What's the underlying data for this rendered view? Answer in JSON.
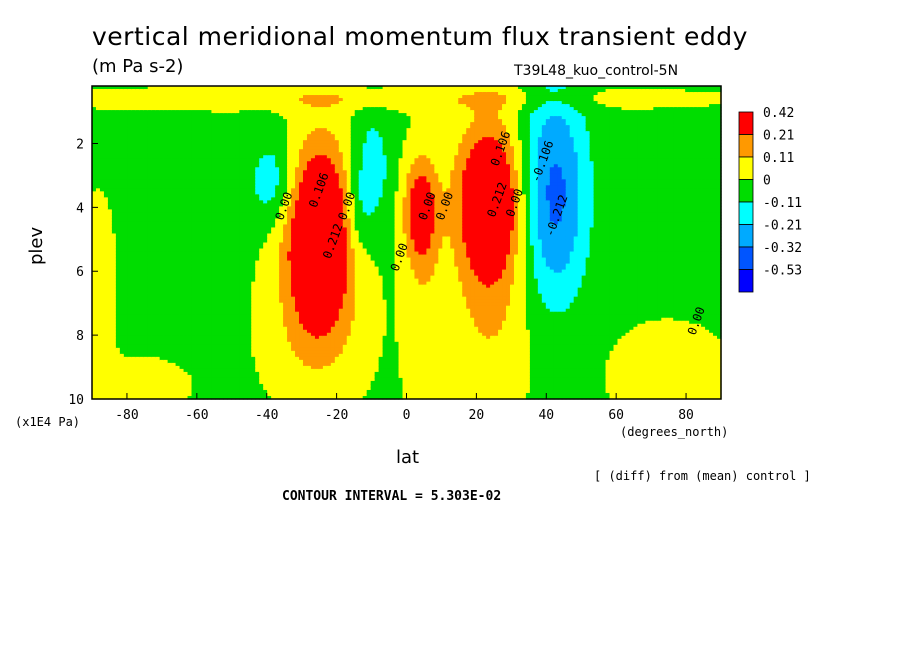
{
  "chart_data": {
    "type": "heatmap",
    "title": "vertical meridional momentum flux transient eddy",
    "units": "(m Pa s-2)",
    "run_label": "T39L48_kuo_control-5N",
    "xlabel": "lat",
    "x_unit": "(degrees_north)",
    "ylabel": "plev",
    "y_unit": "(x1E4 Pa)",
    "note": "[ (diff) from (mean) control ]",
    "contour_interval": "CONTOUR INTERVAL = 5.303E-02",
    "xlim": [
      -90,
      90
    ],
    "ylim": [
      10,
      0.2
    ],
    "x_ticks": [
      -80,
      -60,
      -40,
      -20,
      0,
      20,
      40,
      60,
      80
    ],
    "x_tick_labels": [
      "-80",
      "-60",
      "-40",
      "-20",
      "0",
      "20",
      "40",
      "60",
      "80"
    ],
    "y_ticks": [
      2,
      4,
      6,
      8,
      10
    ],
    "y_tick_labels": [
      "2",
      "4",
      "6",
      "8",
      "10"
    ],
    "colorbar": {
      "levels": [
        "0.42",
        "0.21",
        "0.11",
        "0",
        "-0.11",
        "-0.21",
        "-0.32",
        "-0.53"
      ],
      "colors": [
        "#ff0000",
        "#ff9900",
        "#ffff00",
        "#00dd00",
        "#00ffff",
        "#00aaff",
        "#0055ff",
        "#0000ff"
      ]
    },
    "contour_labels": [
      {
        "text": "0.00",
        "lat": -34,
        "plev": 4.0
      },
      {
        "text": "0.106",
        "lat": -24,
        "plev": 3.5
      },
      {
        "text": "0.00",
        "lat": -16,
        "plev": 4.0
      },
      {
        "text": "0.212",
        "lat": -20,
        "plev": 5.1
      },
      {
        "text": "0.00",
        "lat": -1,
        "plev": 5.6
      },
      {
        "text": "0.00",
        "lat": 7,
        "plev": 4.0
      },
      {
        "text": "0.00",
        "lat": 12,
        "plev": 4.0
      },
      {
        "text": "0.106",
        "lat": 28,
        "plev": 2.2
      },
      {
        "text": "0.212",
        "lat": 27,
        "plev": 3.8
      },
      {
        "text": "0.00",
        "lat": 32,
        "plev": 3.9
      },
      {
        "text": "-0.106",
        "lat": 40,
        "plev": 2.6
      },
      {
        "text": "-0.212",
        "lat": 44,
        "plev": 4.3
      },
      {
        "text": "0.00",
        "lat": 84,
        "plev": 7.6
      }
    ]
  }
}
